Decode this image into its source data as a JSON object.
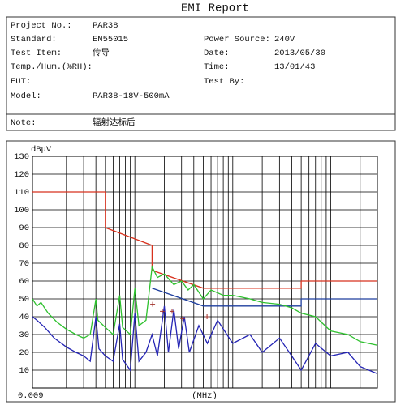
{
  "header": {
    "title": "EMI Report",
    "fields": [
      {
        "label": "Project No.:",
        "value": "PAR38"
      },
      {
        "label": "Standard:",
        "value": "EN55015"
      },
      {
        "label": "Test Item:",
        "value": "传导"
      },
      {
        "label": "Temp./Hum.(%RH):"
      },
      {
        "label": "EUT:"
      },
      {
        "label": "Model:",
        "value": "PAR38-18V-500mA"
      }
    ],
    "right_fields": [
      {
        "label": "Power Source:",
        "value": "240V"
      },
      {
        "label": "Date:",
        "value": "2013/05/30"
      },
      {
        "label": "Time:",
        "value": "13/01/43"
      },
      {
        "label": "Test By:"
      }
    ],
    "note": {
      "label": "Note:",
      "value": "辐射达标后"
    }
  },
  "chart_data": {
    "type": "line",
    "ylabel": "dBμV",
    "xlabel": "(MHz)",
    "log_x": true,
    "xlim": [
      0.009,
      30
    ],
    "ylim": [
      0,
      130
    ],
    "xticks": [
      {
        "value": 0.009,
        "label": "0.009"
      }
    ],
    "xgrid": [
      0.01,
      0.02,
      0.03,
      0.04,
      0.05,
      0.06,
      0.07,
      0.08,
      0.09,
      0.1,
      0.2,
      0.3,
      0.4,
      0.5,
      0.6,
      0.7,
      0.8,
      0.9,
      1,
      2,
      3,
      4,
      5,
      6,
      7,
      8,
      9,
      10,
      20
    ],
    "yticks": [
      10,
      20,
      30,
      40,
      50,
      60,
      70,
      80,
      90,
      100,
      110,
      120,
      130
    ],
    "grid": true,
    "series": [
      {
        "color": "#d8321e",
        "x": [
          0.009,
          0.05,
          0.05,
          0.15,
          0.15,
          0.5,
          5,
          5,
          30
        ],
        "values": [
          110,
          110,
          90,
          80,
          66,
          56,
          56,
          60,
          60
        ]
      },
      {
        "color": "#1f3f9e",
        "x": [
          0.15,
          0.5,
          5,
          5,
          30
        ],
        "values": [
          56,
          46,
          46,
          50,
          50
        ]
      },
      {
        "color": "#2fc12f",
        "x": [
          0.009,
          0.01,
          0.011,
          0.013,
          0.016,
          0.02,
          0.025,
          0.03,
          0.035,
          0.04,
          0.042,
          0.05,
          0.06,
          0.07,
          0.075,
          0.09,
          0.1,
          0.11,
          0.13,
          0.15,
          0.17,
          0.2,
          0.25,
          0.3,
          0.35,
          0.4,
          0.5,
          0.6,
          0.8,
          1,
          1.5,
          2,
          3,
          4,
          5,
          7,
          10,
          15,
          20,
          30
        ],
        "values": [
          50,
          46,
          48,
          42,
          37,
          33,
          30,
          28,
          30,
          50,
          38,
          34,
          30,
          52,
          34,
          30,
          56,
          35,
          38,
          68,
          62,
          64,
          58,
          60,
          55,
          58,
          50,
          55,
          52,
          52,
          50,
          48,
          47,
          45,
          42,
          40,
          32,
          30,
          26,
          24
        ]
      },
      {
        "color": "#2424b4",
        "x": [
          0.009,
          0.01,
          0.012,
          0.015,
          0.02,
          0.025,
          0.03,
          0.035,
          0.04,
          0.043,
          0.05,
          0.06,
          0.07,
          0.075,
          0.09,
          0.1,
          0.11,
          0.13,
          0.15,
          0.17,
          0.2,
          0.22,
          0.25,
          0.28,
          0.32,
          0.36,
          0.45,
          0.55,
          0.7,
          1,
          1.5,
          2,
          3,
          4,
          5,
          7,
          10,
          15,
          20,
          30
        ],
        "values": [
          40,
          38,
          34,
          28,
          23,
          20,
          18,
          15,
          40,
          22,
          18,
          15,
          36,
          16,
          10,
          42,
          15,
          20,
          30,
          18,
          46,
          20,
          44,
          22,
          40,
          20,
          35,
          25,
          38,
          25,
          30,
          20,
          28,
          18,
          10,
          25,
          18,
          20,
          12,
          8
        ]
      }
    ],
    "markers": {
      "color": "#a0302a",
      "x": [
        0.152,
        0.191,
        0.24,
        0.308,
        0.546
      ],
      "values": [
        47,
        43,
        43,
        39,
        40
      ]
    }
  }
}
